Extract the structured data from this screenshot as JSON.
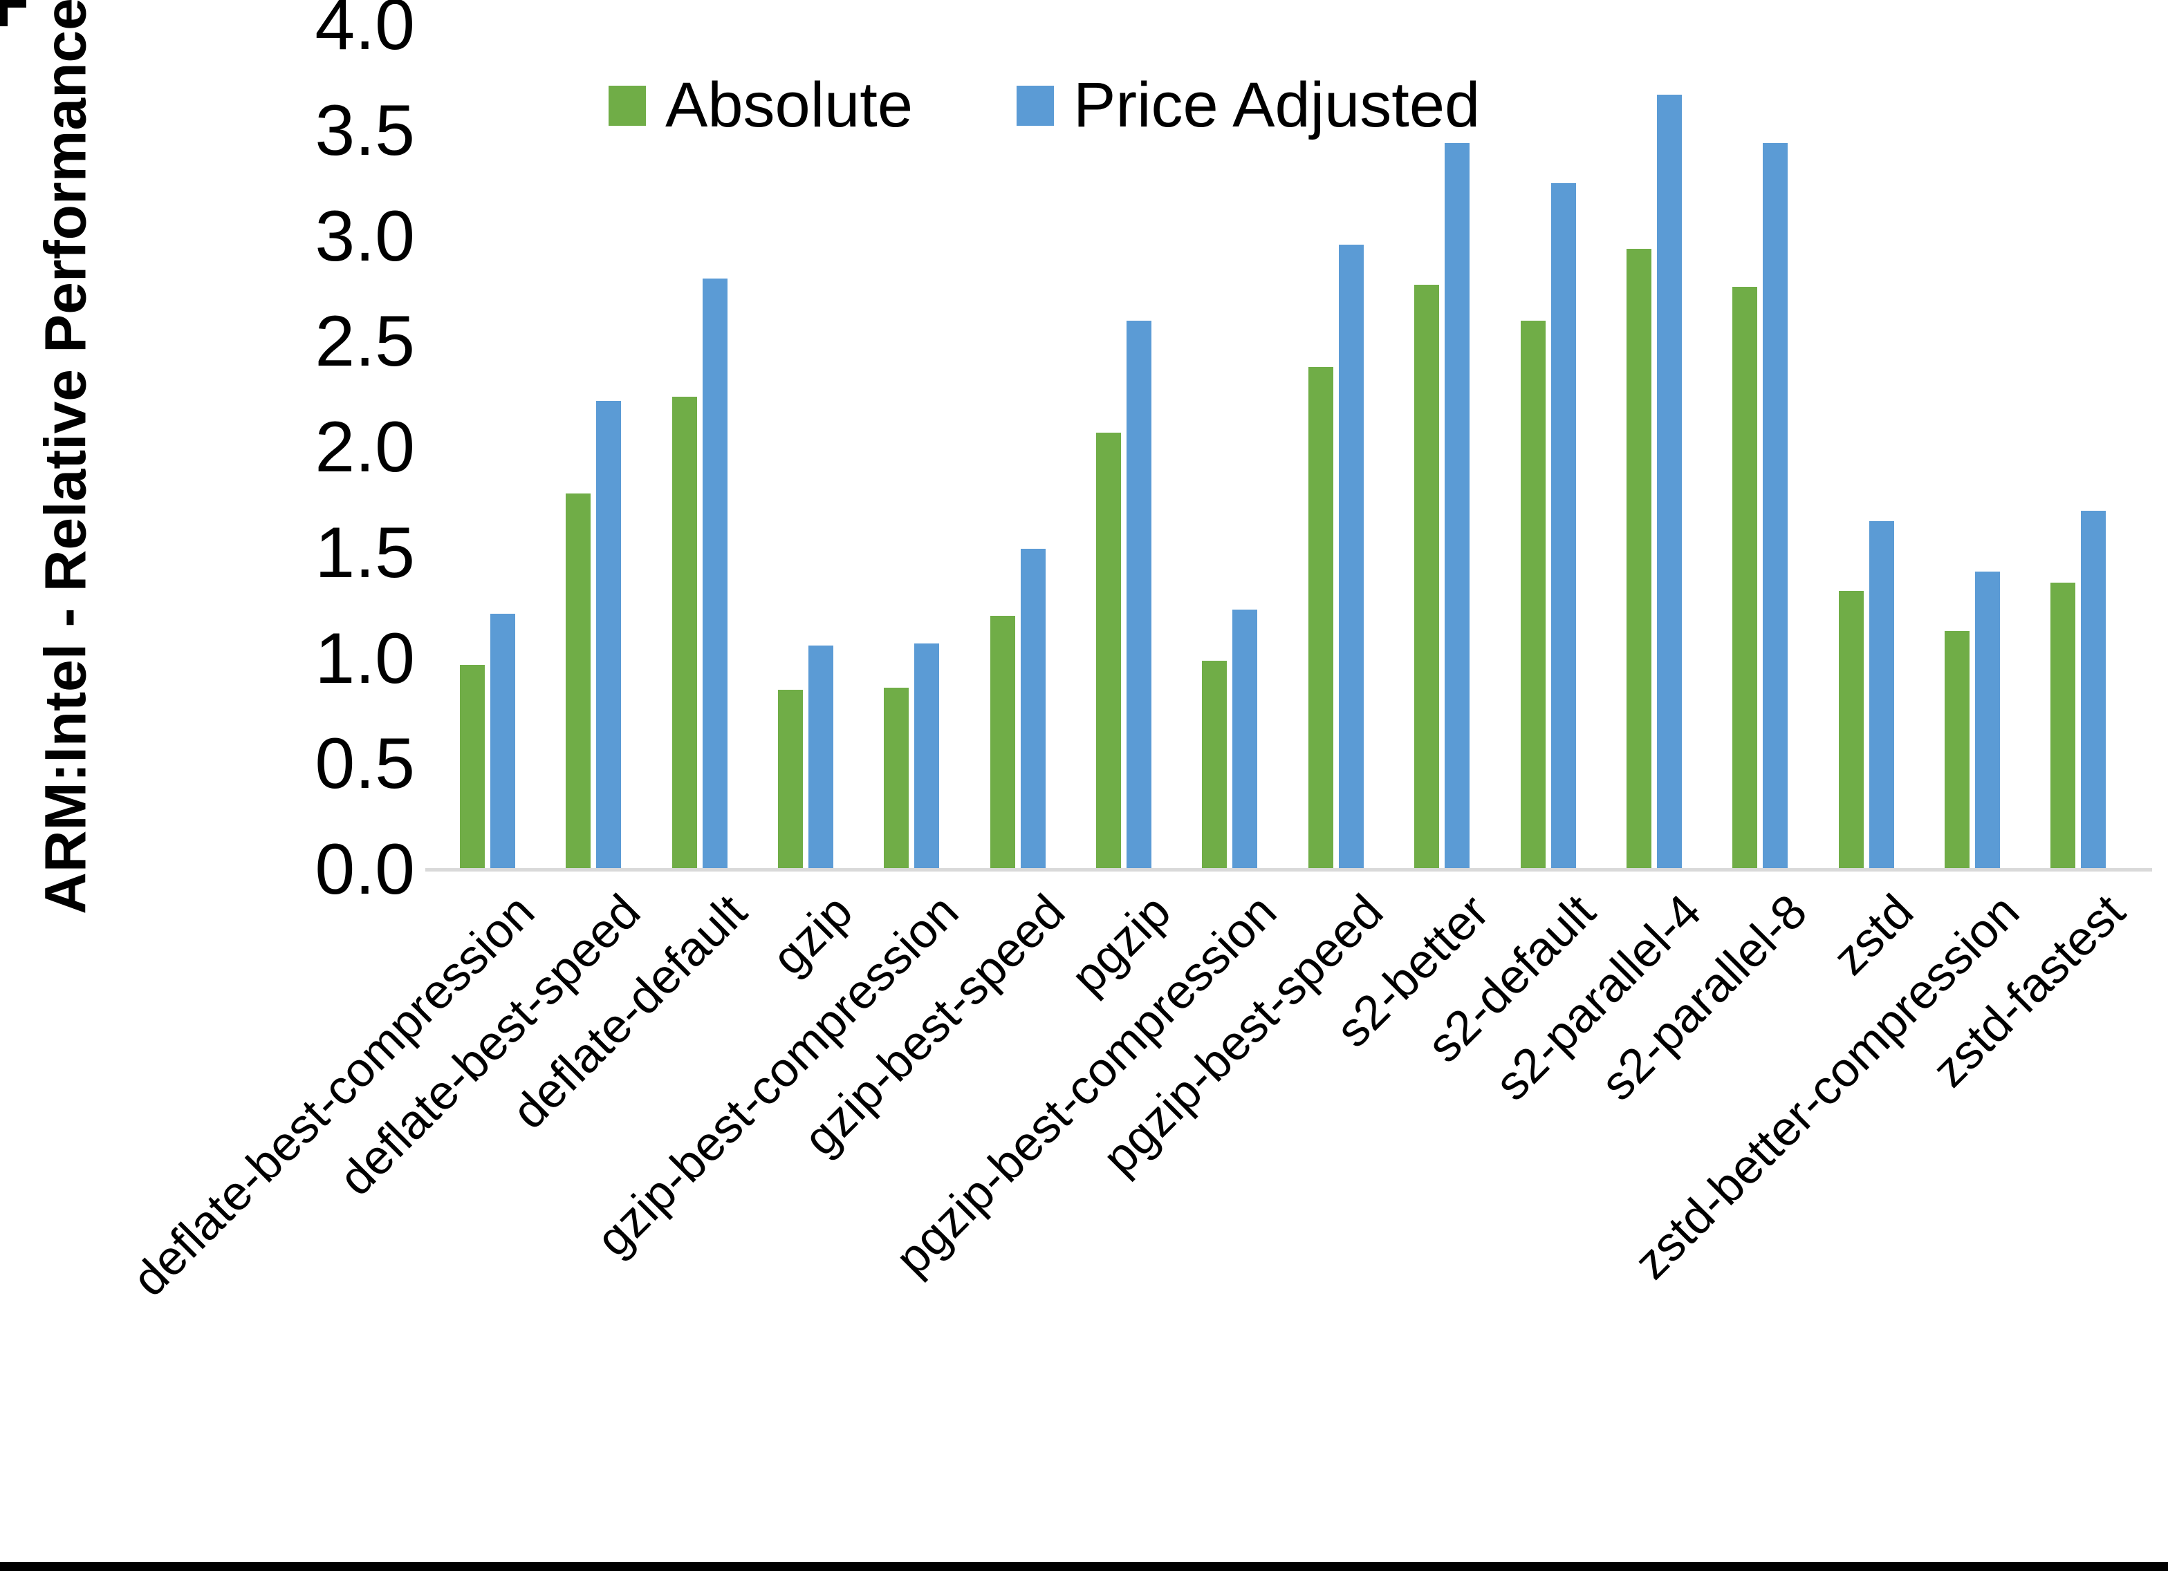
{
  "chart_data": {
    "type": "bar",
    "title": "",
    "ylabel": "ARM:Intel - Relative Performance",
    "xlabel": "",
    "ylim": [
      0.0,
      4.0
    ],
    "ytick_step": 0.5,
    "yticks": [
      "0.0",
      "0.5",
      "1.0",
      "1.5",
      "2.0",
      "2.5",
      "3.0",
      "3.5",
      "4.0"
    ],
    "grid": false,
    "legend_position": "top",
    "categories": [
      "deflate-best-compression",
      "deflate-best-speed",
      "deflate-default",
      "gzip",
      "gzip-best-compression",
      "gzip-best-speed",
      "pgzip",
      "pgzip-best-compression",
      "pgzip-best-speed",
      "s2-better",
      "s2-default",
      "s2-parallel-4",
      "s2-parallel-8",
      "zstd",
      "zstd-better-compression",
      "zstd-fastest"
    ],
    "series": [
      {
        "name": "Absolute",
        "color": "#70AD47",
        "values": [
          0.97,
          1.78,
          2.24,
          0.85,
          0.86,
          1.2,
          2.07,
          0.99,
          2.38,
          2.77,
          2.6,
          2.94,
          2.76,
          1.32,
          1.13,
          1.36
        ]
      },
      {
        "name": "Price Adjusted",
        "color": "#5B9BD5",
        "values": [
          1.21,
          2.22,
          2.8,
          1.06,
          1.07,
          1.52,
          2.6,
          1.23,
          2.96,
          3.44,
          3.25,
          3.67,
          3.44,
          1.65,
          1.41,
          1.7
        ]
      }
    ],
    "colors": {
      "axis_line": "#d9d9d9",
      "text": "#000000",
      "background": "#ffffff",
      "border": "#000000"
    }
  }
}
